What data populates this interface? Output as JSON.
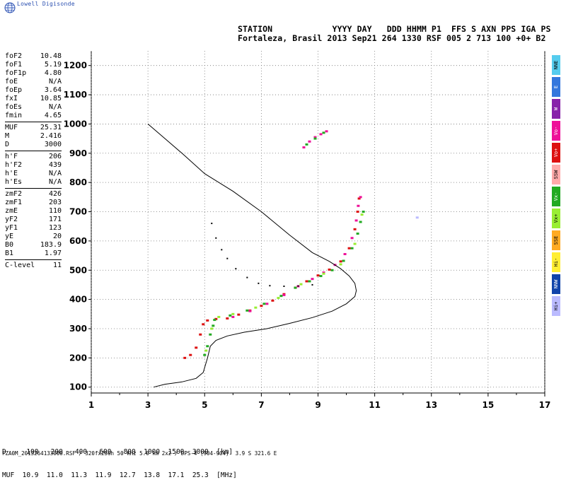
{
  "brand": "Lowell Digisonde",
  "header": {
    "line1": "STATION            YYYY DAY   DDD HHMM P1  FFS S AXN PPS IGA PS",
    "line2": "Fortaleza, Brasil 2013 Sep21 264 1330 RSF 005 2 713 100 +0+ B2"
  },
  "parameters": [
    [
      {
        "name": "foF2",
        "value": "10.48"
      },
      {
        "name": "foF1",
        "value": "5.19"
      },
      {
        "name": "foF1p",
        "value": "4.80"
      },
      {
        "name": "foE",
        "value": "N/A"
      },
      {
        "name": "foEp",
        "value": "3.64"
      },
      {
        "name": "fxI",
        "value": "10.85"
      },
      {
        "name": "foEs",
        "value": "N/A"
      },
      {
        "name": "fmin",
        "value": "4.65"
      }
    ],
    [
      {
        "name": "MUF",
        "value": "25.31"
      },
      {
        "name": "M",
        "value": "2.416"
      },
      {
        "name": "D",
        "value": "3000"
      }
    ],
    [
      {
        "name": "h'F",
        "value": "206"
      },
      {
        "name": "h'F2",
        "value": "439"
      },
      {
        "name": "h'E",
        "value": "N/A"
      },
      {
        "name": "h'Es",
        "value": "N/A"
      }
    ],
    [
      {
        "name": "zmF2",
        "value": "426"
      },
      {
        "name": "zmF1",
        "value": "203"
      },
      {
        "name": "zmE",
        "value": "110"
      },
      {
        "name": "yF2",
        "value": "171"
      },
      {
        "name": "yF1",
        "value": "123"
      },
      {
        "name": "yE",
        "value": "20"
      },
      {
        "name": "B0",
        "value": "183.9"
      },
      {
        "name": "B1",
        "value": "1.97"
      }
    ],
    [
      {
        "name": "C-level",
        "value": "11"
      }
    ]
  ],
  "legend": [
    {
      "label": "NNE",
      "color": "#55ccee"
    },
    {
      "label": "E",
      "color": "#3377dd"
    },
    {
      "label": "W",
      "color": "#8822aa"
    },
    {
      "label": "Vo-",
      "color": "#ee1199"
    },
    {
      "label": "Vo+",
      "color": "#dd1111"
    },
    {
      "label": "SSW",
      "color": "#ffaaaa"
    },
    {
      "label": "Vx-",
      "color": "#22aa22"
    },
    {
      "label": "Vx+",
      "color": "#99ee33"
    },
    {
      "label": "SSE",
      "color": "#ffaa22"
    },
    {
      "label": "Hi-",
      "color": "#ffee33"
    },
    {
      "label": "NNW",
      "color": "#1144aa"
    },
    {
      "label": "Hi+",
      "color": "#bbbbff"
    }
  ],
  "bottom": {
    "d_row": "D     100   200   400   600   800  1000  1500  3000  [km]",
    "muf_row": "MUF  10.9  11.0  11.3  11.9  12.7  13.8  17.1  25.3  [MHz]",
    "footer": "FZA0M_2013264133000.RSF / 320fx256h 50 kHz 5.0 km 2x2 / DPS-4 (904-904)  3.9 S 321.6 E"
  },
  "chart_data": {
    "type": "scatter",
    "xlim": [
      1,
      17
    ],
    "ylim": [
      80,
      1250
    ],
    "x_ticks": [
      1,
      3,
      5,
      7,
      9,
      11,
      13,
      15,
      17
    ],
    "y_ticks": [
      100,
      200,
      300,
      400,
      500,
      600,
      700,
      800,
      900,
      1000,
      1100,
      1200
    ],
    "grid": true,
    "series": [
      {
        "color": "#dd1111",
        "points": [
          [
            4.3,
            200
          ],
          [
            4.5,
            210
          ],
          [
            4.7,
            235
          ],
          [
            4.85,
            280
          ],
          [
            4.95,
            315
          ],
          [
            5.1,
            328
          ],
          [
            5.4,
            333
          ],
          [
            5.8,
            335
          ],
          [
            6.2,
            348
          ],
          [
            6.6,
            362
          ],
          [
            7.0,
            378
          ],
          [
            7.4,
            396
          ],
          [
            7.8,
            418
          ],
          [
            8.2,
            440
          ],
          [
            8.6,
            462
          ],
          [
            9.0,
            482
          ],
          [
            9.4,
            502
          ],
          [
            9.8,
            530
          ],
          [
            10.1,
            575
          ],
          [
            10.3,
            640
          ],
          [
            10.4,
            700
          ],
          [
            10.45,
            745
          ]
        ]
      },
      {
        "color": "#ee1199",
        "points": [
          [
            6.0,
            340
          ],
          [
            6.6,
            360
          ],
          [
            7.2,
            385
          ],
          [
            7.8,
            415
          ],
          [
            8.3,
            445
          ],
          [
            8.8,
            470
          ],
          [
            9.2,
            492
          ],
          [
            9.6,
            518
          ],
          [
            9.95,
            555
          ],
          [
            10.2,
            610
          ],
          [
            10.35,
            670
          ],
          [
            10.42,
            720
          ],
          [
            10.5,
            750
          ],
          [
            8.5,
            920
          ],
          [
            8.7,
            940
          ],
          [
            8.9,
            955
          ],
          [
            9.1,
            965
          ],
          [
            9.3,
            975
          ]
        ]
      },
      {
        "color": "#22aa22",
        "points": [
          [
            5.0,
            210
          ],
          [
            5.1,
            240
          ],
          [
            5.2,
            280
          ],
          [
            5.3,
            310
          ],
          [
            5.35,
            330
          ],
          [
            5.9,
            345
          ],
          [
            6.5,
            362
          ],
          [
            7.1,
            385
          ],
          [
            7.7,
            412
          ],
          [
            8.2,
            440
          ],
          [
            8.7,
            462
          ],
          [
            9.1,
            480
          ],
          [
            9.5,
            500
          ],
          [
            9.9,
            532
          ],
          [
            10.2,
            575
          ],
          [
            10.4,
            625
          ],
          [
            10.5,
            665
          ],
          [
            10.6,
            700
          ],
          [
            8.6,
            930
          ],
          [
            8.9,
            950
          ],
          [
            9.2,
            970
          ]
        ]
      },
      {
        "color": "#99ee33",
        "points": [
          [
            5.05,
            225
          ],
          [
            5.25,
            300
          ],
          [
            5.5,
            340
          ],
          [
            6.0,
            350
          ],
          [
            6.8,
            372
          ],
          [
            7.6,
            405
          ],
          [
            8.4,
            452
          ],
          [
            9.2,
            488
          ],
          [
            9.8,
            520
          ],
          [
            10.3,
            590
          ],
          [
            10.55,
            690
          ]
        ]
      },
      {
        "color": "#bbbbff",
        "points": [
          [
            12.5,
            680
          ]
        ]
      }
    ],
    "profile": {
      "color": "#000000",
      "points": [
        [
          3.2,
          100
        ],
        [
          3.6,
          110
        ],
        [
          4.2,
          118
        ],
        [
          4.7,
          130
        ],
        [
          4.95,
          150
        ],
        [
          5.1,
          200
        ],
        [
          5.2,
          240
        ],
        [
          5.4,
          260
        ],
        [
          5.8,
          275
        ],
        [
          6.4,
          288
        ],
        [
          7.2,
          300
        ],
        [
          8.0,
          318
        ],
        [
          8.8,
          338
        ],
        [
          9.5,
          360
        ],
        [
          10.0,
          385
        ],
        [
          10.3,
          410
        ],
        [
          10.35,
          430
        ],
        [
          10.3,
          455
        ],
        [
          10.1,
          480
        ],
        [
          9.8,
          505
        ],
        [
          9.4,
          530
        ],
        [
          8.8,
          560
        ],
        [
          8.0,
          620
        ],
        [
          7.0,
          700
        ],
        [
          6.0,
          770
        ],
        [
          5.0,
          830
        ],
        [
          4.2,
          900
        ],
        [
          3.6,
          950
        ],
        [
          3.0,
          1000
        ]
      ]
    },
    "trace": {
      "color": "#000000",
      "points": [
        [
          5.25,
          660
        ],
        [
          5.4,
          610
        ],
        [
          5.6,
          570
        ],
        [
          5.8,
          540
        ],
        [
          6.1,
          505
        ],
        [
          6.5,
          475
        ],
        [
          6.9,
          455
        ],
        [
          7.3,
          447
        ],
        [
          7.8,
          445
        ],
        [
          8.3,
          446
        ],
        [
          8.8,
          450
        ]
      ]
    }
  }
}
